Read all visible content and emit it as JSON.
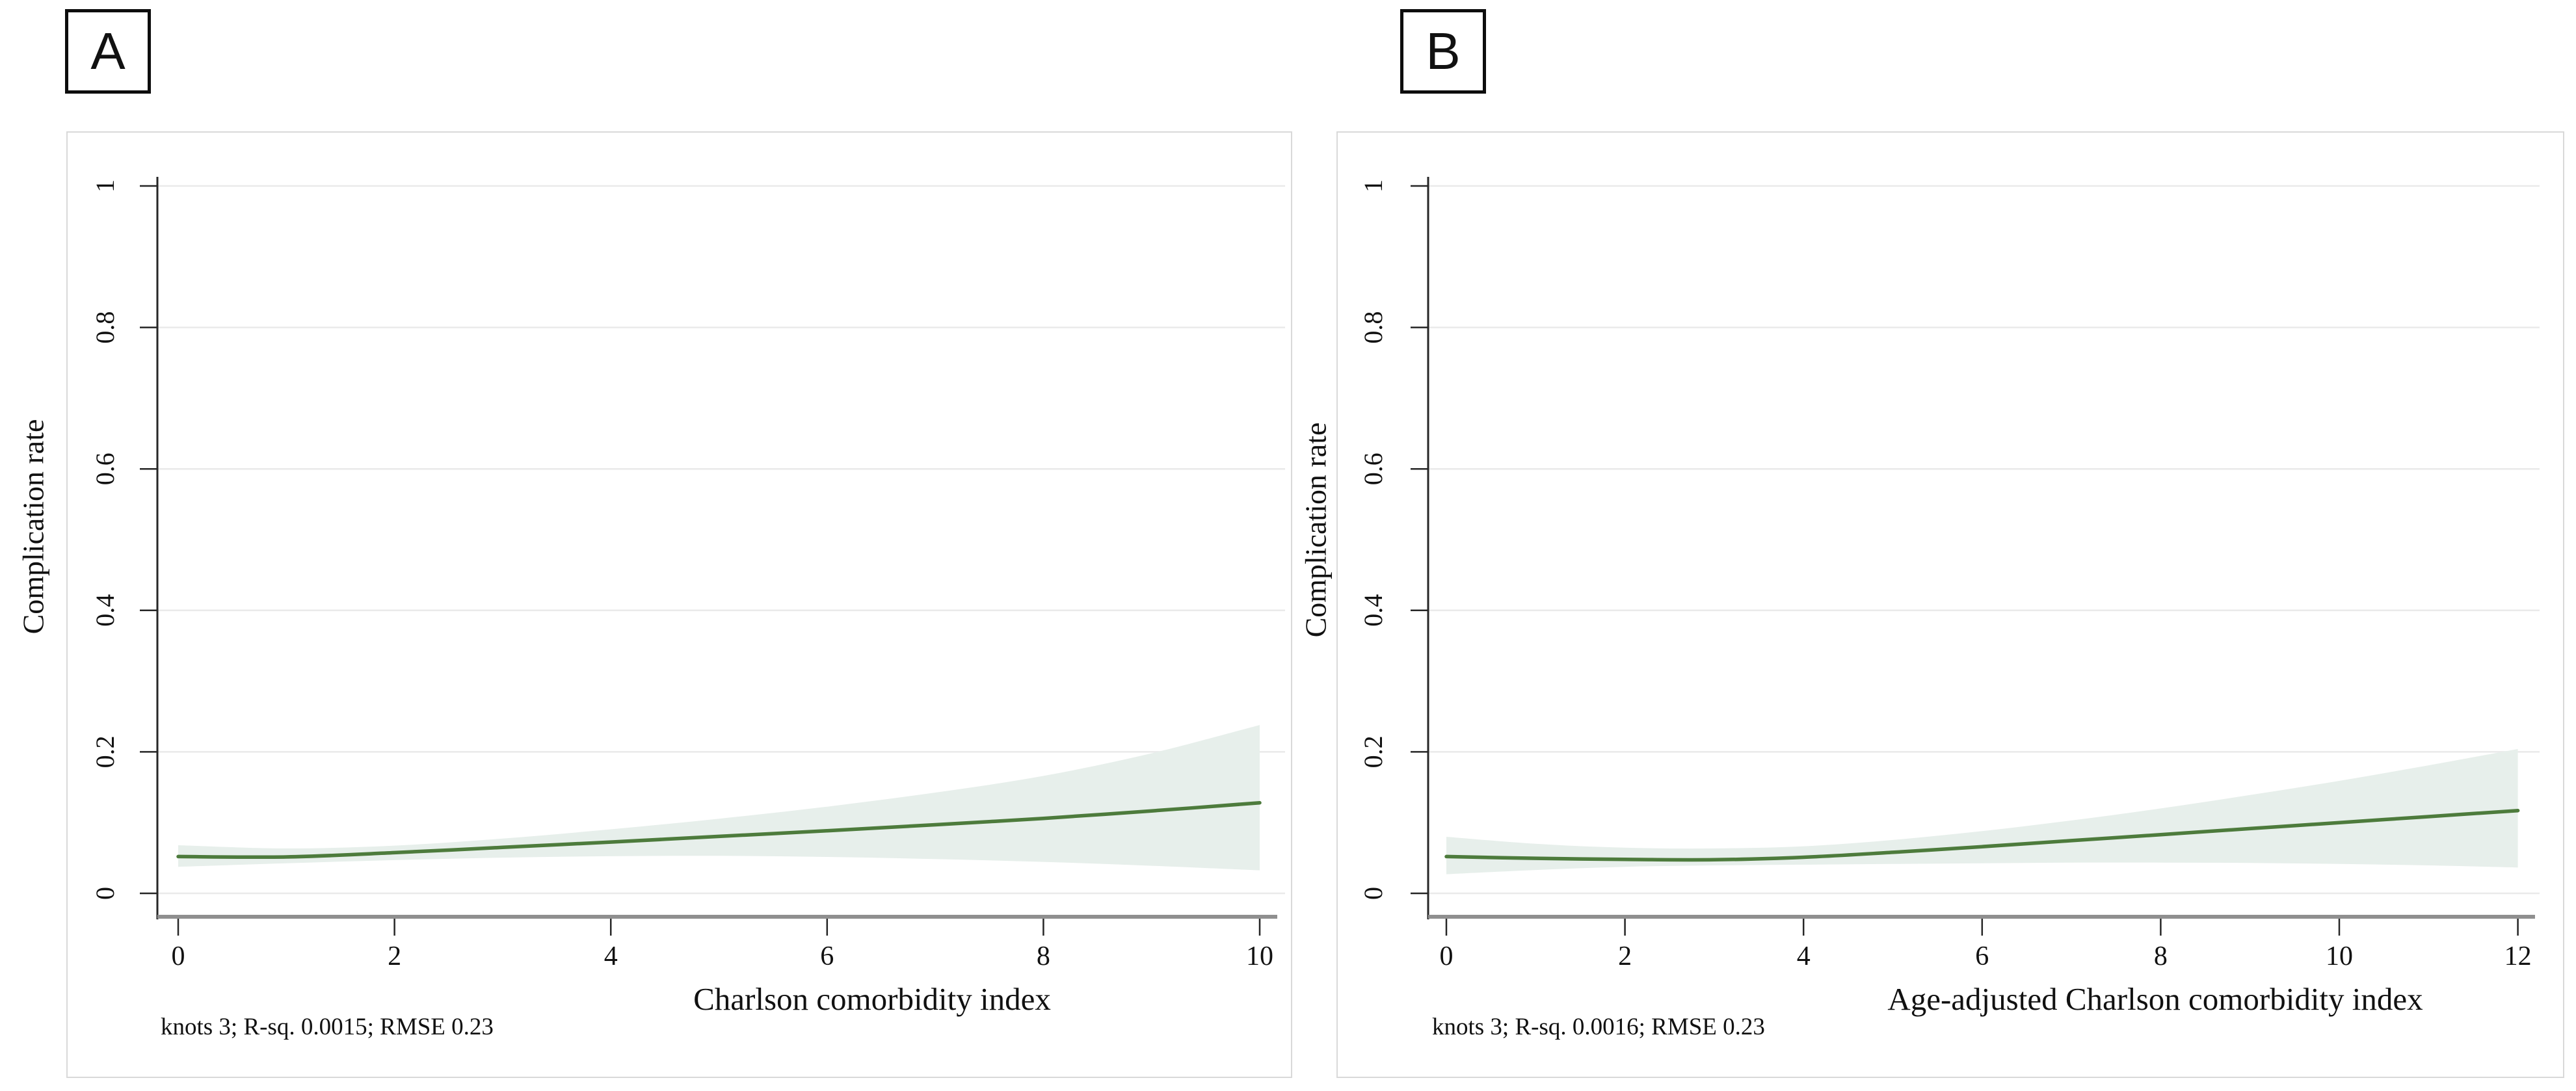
{
  "figure": {
    "background": "#ffffff",
    "panel_labels": [
      "A",
      "B"
    ],
    "style": {
      "border_color": "#d9d9d9",
      "grid_color": "#eaeaea",
      "axis_color": "#262626",
      "xaxis_line_color": "#8f8f8f",
      "text_color": "#111111"
    }
  },
  "chart_data": [
    {
      "type": "line",
      "panel": "A",
      "title": "",
      "xlabel": "Charlson comorbidity index",
      "ylabel": "Complication rate",
      "note": "knots 3; R-sq. 0.0015; RMSE 0.23",
      "xlim": [
        0,
        10
      ],
      "ylim": [
        0,
        1
      ],
      "xticks": [
        0,
        2,
        4,
        6,
        8,
        10
      ],
      "xtick_labels": [
        "0",
        "2",
        "4",
        "6",
        "8",
        "10"
      ],
      "yticks": [
        0,
        0.2,
        0.4,
        0.6,
        0.8,
        1
      ],
      "ytick_labels": [
        "0",
        "0.2",
        "0.4",
        "0.6",
        "0.8",
        "1"
      ],
      "grid": "horizontal",
      "legend": "none",
      "line_color": "#4d7b3c",
      "band_color": "#e7efeb",
      "x": [
        0,
        1,
        2,
        3,
        4,
        5,
        6,
        7,
        8,
        9,
        10
      ],
      "series": [
        {
          "name": "restricted cubic spline fit",
          "values": [
            0.052,
            0.0515,
            0.0575,
            0.065,
            0.0725,
            0.0805,
            0.0885,
            0.097,
            0.106,
            0.1165,
            0.128
          ]
        },
        {
          "name": "95% confidence band",
          "upper": [
            0.068,
            0.0635,
            0.0675,
            0.0775,
            0.0905,
            0.1055,
            0.1225,
            0.1425,
            0.166,
            0.198,
            0.238
          ],
          "lower": [
            0.0375,
            0.0425,
            0.047,
            0.0505,
            0.0525,
            0.053,
            0.0515,
            0.0485,
            0.0445,
            0.039,
            0.0325
          ]
        }
      ]
    },
    {
      "type": "line",
      "panel": "B",
      "title": "",
      "xlabel": "Age-adjusted Charlson comorbidity index",
      "ylabel": "Complication rate",
      "note": "knots 3; R-sq. 0.0016; RMSE 0.23",
      "xlim": [
        0,
        12
      ],
      "ylim": [
        0,
        1
      ],
      "xticks": [
        0,
        2,
        4,
        6,
        8,
        10,
        12
      ],
      "xtick_labels": [
        "0",
        "2",
        "4",
        "6",
        "8",
        "10",
        "12"
      ],
      "yticks": [
        0,
        0.2,
        0.4,
        0.6,
        0.8,
        1
      ],
      "ytick_labels": [
        "0",
        "0.2",
        "0.4",
        "0.6",
        "0.8",
        "1"
      ],
      "grid": "horizontal",
      "legend": "none",
      "line_color": "#4d7b3c",
      "band_color": "#e7efeb",
      "x": [
        0,
        1,
        2,
        3,
        4,
        5,
        6,
        7,
        8,
        9,
        10,
        11,
        12
      ],
      "series": [
        {
          "name": "restricted cubic spline fit",
          "values": [
            0.052,
            0.0495,
            0.048,
            0.0475,
            0.051,
            0.058,
            0.066,
            0.0745,
            0.083,
            0.0915,
            0.1,
            0.1085,
            0.117
          ]
        },
        {
          "name": "95% confidence band",
          "upper": [
            0.08,
            0.07,
            0.0645,
            0.0635,
            0.0665,
            0.0755,
            0.088,
            0.103,
            0.12,
            0.139,
            0.159,
            0.181,
            0.204
          ],
          "lower": [
            0.027,
            0.033,
            0.0375,
            0.0395,
            0.0405,
            0.0415,
            0.0425,
            0.0435,
            0.0435,
            0.043,
            0.0415,
            0.0395,
            0.0365
          ]
        }
      ]
    }
  ]
}
